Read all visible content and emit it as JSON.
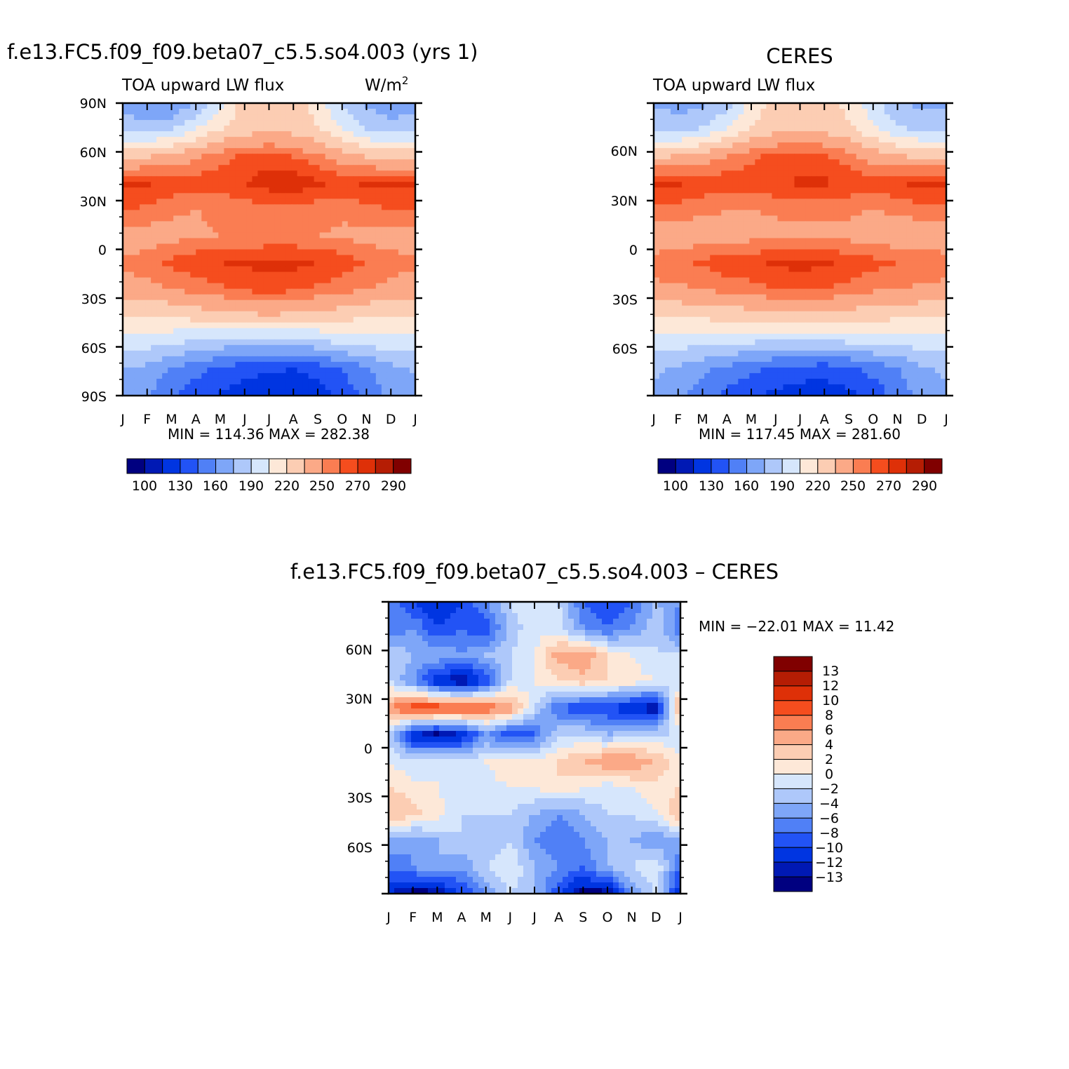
{
  "figure": {
    "panels": [
      {
        "id": "model",
        "title": "f.e13.FC5.f09_f09.beta07_c5.5.so4.003 (yrs 1)",
        "left_label": "TOA upward LW flux",
        "units": "W/m",
        "units_superscript": "2",
        "y_ticks": [
          "90N",
          "60N",
          "30N",
          "0",
          "30S",
          "60S",
          "90S"
        ],
        "x_ticks": [
          "J",
          "F",
          "M",
          "A",
          "M",
          "J",
          "J",
          "A",
          "S",
          "O",
          "N",
          "D",
          "J"
        ],
        "stats": "MIN =  114.36  MAX =  282.38",
        "colorbar_labels": [
          "100",
          "130",
          "160",
          "190",
          "220",
          "250",
          "270",
          "290"
        ]
      },
      {
        "id": "obs",
        "title": "CERES",
        "left_label": "TOA upward LW flux",
        "y_ticks": [
          "60N",
          "30N",
          "0",
          "30S",
          "60S"
        ],
        "x_ticks": [
          "J",
          "F",
          "M",
          "A",
          "M",
          "J",
          "J",
          "A",
          "S",
          "O",
          "N",
          "D",
          "J"
        ],
        "stats": "MIN =  117.45  MAX =  281.60",
        "colorbar_labels": [
          "100",
          "130",
          "160",
          "190",
          "220",
          "250",
          "270",
          "290"
        ]
      },
      {
        "id": "diff",
        "title": "f.e13.FC5.f09_f09.beta07_c5.5.so4.003 – CERES",
        "y_ticks": [
          "60N",
          "30N",
          "0",
          "30S",
          "60S"
        ],
        "x_ticks": [
          "J",
          "F",
          "M",
          "A",
          "M",
          "J",
          "J",
          "A",
          "S",
          "O",
          "N",
          "D",
          "J"
        ],
        "stats": "MIN = −22.01  MAX =   11.42",
        "colorbar_labels": [
          "13",
          "12",
          "10",
          "8",
          "6",
          "4",
          "2",
          "0",
          "−2",
          "−4",
          "−6",
          "−8",
          "−10",
          "−12",
          "−13"
        ]
      }
    ],
    "colors": {
      "flux_levels": [
        "#000080",
        "#0019b4",
        "#0035e1",
        "#2253f5",
        "#5080f6",
        "#7ea6f8",
        "#aec8fa",
        "#d6e6fc",
        "#fde8d8",
        "#fccdb3",
        "#fba987",
        "#fa7d52",
        "#f54d1e",
        "#de3008",
        "#b51d04",
        "#800000"
      ],
      "diff_levels": [
        "#800000",
        "#b51d04",
        "#de3008",
        "#f54d1e",
        "#fa7d52",
        "#fba987",
        "#fccdb3",
        "#fde8d8",
        "#d6e6fc",
        "#aec8fa",
        "#7ea6f8",
        "#5080f6",
        "#2253f5",
        "#0035e1",
        "#0019b4",
        "#000080"
      ]
    }
  },
  "chart_data": [
    {
      "type": "heatmap",
      "title": "f.e13.FC5.f09_f09.beta07_c5.5.so4.003 (yrs 1)",
      "subtitle_left": "TOA upward LW flux",
      "units": "W/m^2",
      "x": [
        "J",
        "F",
        "M",
        "A",
        "M",
        "J",
        "J",
        "A",
        "S",
        "O",
        "N",
        "D",
        "J"
      ],
      "y": [
        90,
        60,
        30,
        0,
        -30,
        -60,
        -90
      ],
      "ylim": [
        -90,
        90
      ],
      "min": 114.36,
      "max": 282.38,
      "levels": [
        100,
        130,
        160,
        190,
        220,
        250,
        270,
        290
      ],
      "values": [
        [
          168,
          160,
          158,
          175,
          202,
          226,
          230,
          230,
          212,
          190,
          172,
          165,
          168
        ],
        [
          185,
          182,
          190,
          205,
          220,
          228,
          232,
          230,
          222,
          205,
          190,
          182,
          185
        ],
        [
          230,
          234,
          240,
          248,
          256,
          262,
          264,
          260,
          252,
          242,
          234,
          230,
          230
        ],
        [
          272,
          272,
          268,
          266,
          266,
          270,
          276,
          278,
          272,
          268,
          272,
          274,
          272
        ],
        [
          262,
          258,
          252,
          250,
          252,
          254,
          256,
          256,
          254,
          252,
          256,
          260,
          262
        ],
        [
          242,
          244,
          246,
          248,
          250,
          250,
          252,
          252,
          250,
          248,
          246,
          244,
          242
        ],
        [
          252,
          256,
          262,
          268,
          270,
          272,
          274,
          273,
          270,
          266,
          260,
          255,
          252
        ],
        [
          244,
          246,
          250,
          254,
          258,
          262,
          264,
          262,
          258,
          254,
          250,
          246,
          244
        ],
        [
          220,
          220,
          222,
          226,
          230,
          232,
          234,
          232,
          230,
          226,
          222,
          220,
          220
        ],
        [
          200,
          196,
          192,
          188,
          184,
          182,
          180,
          182,
          186,
          192,
          196,
          200,
          200
        ],
        [
          176,
          170,
          160,
          150,
          142,
          136,
          132,
          130,
          136,
          146,
          158,
          170,
          176
        ],
        [
          170,
          160,
          148,
          136,
          128,
          122,
          118,
          116,
          122,
          134,
          150,
          164,
          170
        ]
      ]
    },
    {
      "type": "heatmap",
      "title": "CERES",
      "subtitle_left": "TOA upward LW flux",
      "x": [
        "J",
        "F",
        "M",
        "A",
        "M",
        "J",
        "J",
        "A",
        "S",
        "O",
        "N",
        "D",
        "J"
      ],
      "y": [
        60,
        30,
        0,
        -30,
        -60
      ],
      "ylim": [
        -90,
        90
      ],
      "min": 117.45,
      "max": 281.6,
      "levels": [
        100,
        130,
        160,
        190,
        220,
        250,
        270,
        290
      ],
      "values": [
        [
          172,
          168,
          170,
          185,
          208,
          228,
          232,
          230,
          214,
          195,
          178,
          170,
          172
        ],
        [
          188,
          186,
          192,
          206,
          222,
          230,
          234,
          232,
          224,
          208,
          194,
          186,
          188
        ],
        [
          232,
          236,
          242,
          250,
          258,
          264,
          266,
          262,
          254,
          244,
          236,
          232,
          232
        ],
        [
          274,
          272,
          268,
          266,
          266,
          268,
          272,
          272,
          268,
          266,
          270,
          274,
          274
        ],
        [
          258,
          256,
          252,
          250,
          250,
          252,
          254,
          254,
          252,
          250,
          252,
          256,
          258
        ],
        [
          240,
          242,
          244,
          246,
          246,
          246,
          246,
          246,
          246,
          244,
          242,
          240,
          240
        ],
        [
          256,
          258,
          262,
          266,
          268,
          272,
          274,
          272,
          268,
          264,
          260,
          258,
          256
        ],
        [
          246,
          248,
          250,
          254,
          256,
          260,
          262,
          260,
          256,
          252,
          250,
          248,
          246
        ],
        [
          222,
          222,
          224,
          226,
          228,
          230,
          230,
          230,
          228,
          226,
          224,
          222,
          222
        ],
        [
          198,
          196,
          194,
          192,
          190,
          188,
          186,
          188,
          190,
          192,
          194,
          196,
          198
        ],
        [
          178,
          172,
          164,
          156,
          148,
          142,
          138,
          136,
          142,
          150,
          160,
          172,
          178
        ],
        [
          172,
          164,
          152,
          140,
          132,
          126,
          122,
          120,
          126,
          136,
          150,
          166,
          172
        ]
      ]
    },
    {
      "type": "heatmap",
      "title": "f.e13.FC5.f09_f09.beta07_c5.5.so4.003 – CERES",
      "x": [
        "J",
        "F",
        "M",
        "A",
        "M",
        "J",
        "J",
        "A",
        "S",
        "O",
        "N",
        "D",
        "J"
      ],
      "y": [
        60,
        30,
        0,
        -30,
        -60
      ],
      "ylim": [
        -90,
        90
      ],
      "min": -22.01,
      "max": 11.42,
      "levels": [
        -13,
        -12,
        -10,
        -8,
        -6,
        -4,
        -2,
        0,
        2,
        4,
        6,
        8,
        10,
        12,
        13
      ],
      "values": [
        [
          -6,
          -10,
          -12,
          -10,
          -6,
          -2,
          0,
          -2,
          -8,
          -10,
          -8,
          -4,
          -6
        ],
        [
          -8,
          -6,
          -10,
          -8,
          -10,
          -3,
          -1,
          -1,
          -6,
          -8,
          -6,
          -2,
          -8
        ],
        [
          -2,
          -4,
          -4,
          -6,
          -4,
          -2,
          0,
          5,
          6,
          2,
          0,
          -2,
          -2
        ],
        [
          -2,
          -6,
          -12,
          -14,
          -10,
          -2,
          0,
          2,
          3,
          2,
          1,
          0,
          -2
        ],
        [
          6,
          10,
          10,
          9,
          8,
          6,
          -2,
          -8,
          -10,
          -10,
          -12,
          -14,
          6
        ],
        [
          -2,
          -12,
          -14,
          -12,
          -6,
          -10,
          -8,
          -2,
          -2,
          -4,
          -3,
          -2,
          -2
        ],
        [
          0,
          -2,
          0,
          -2,
          0,
          2,
          0,
          2,
          4,
          6,
          6,
          4,
          0
        ],
        [
          2,
          1,
          0,
          -2,
          -1,
          0,
          0,
          2,
          0,
          -1,
          0,
          1,
          2
        ],
        [
          4,
          3,
          1,
          -2,
          -2,
          -2,
          -4,
          -6,
          -4,
          -2,
          -2,
          0,
          4
        ],
        [
          -4,
          -6,
          -4,
          -2,
          -4,
          -2,
          -6,
          -8,
          -6,
          -4,
          -4,
          -6,
          -4
        ],
        [
          -8,
          -6,
          -4,
          -6,
          -2,
          0,
          -4,
          -6,
          -8,
          -4,
          -2,
          0,
          -8
        ],
        [
          -12,
          -14,
          -14,
          -10,
          -6,
          -2,
          -4,
          -10,
          -14,
          -14,
          -6,
          -2,
          -12
        ]
      ]
    }
  ]
}
